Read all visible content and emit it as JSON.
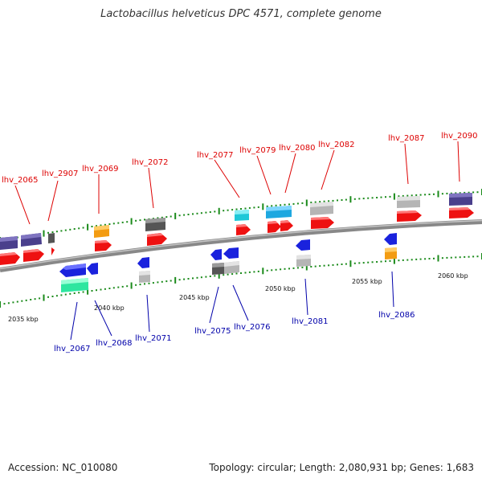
{
  "title": "Lactobacillus helveticus DPC 4571, complete genome",
  "footer": {
    "accession": "Accession: NC_010080",
    "summary": "Topology: circular; Length: 2,080,931 bp; Genes: 1,683"
  },
  "colors": {
    "upper_label": "#dd0000",
    "lower_label": "#0000aa",
    "backbone": "#888888",
    "tick": "#1a8a1a"
  },
  "scale_labels": [
    "2035 kbp",
    "2040 kbp",
    "2045 kbp",
    "2050 kbp",
    "2055 kbp",
    "2060 kbp"
  ],
  "upper_genes": [
    {
      "name": "lhv_2065"
    },
    {
      "name": "lhv_2907"
    },
    {
      "name": "lhv_2069"
    },
    {
      "name": "lhv_2072"
    },
    {
      "name": "lhv_2077"
    },
    {
      "name": "lhv_2079"
    },
    {
      "name": "lhv_2080"
    },
    {
      "name": "lhv_2082"
    },
    {
      "name": "lhv_2087"
    },
    {
      "name": "lhv_2090"
    }
  ],
  "lower_genes": [
    {
      "name": "lhv_2067"
    },
    {
      "name": "lhv_2068"
    },
    {
      "name": "lhv_2071"
    },
    {
      "name": "lhv_2075"
    },
    {
      "name": "lhv_2076"
    },
    {
      "name": "lhv_2081"
    },
    {
      "name": "lhv_2086"
    }
  ]
}
